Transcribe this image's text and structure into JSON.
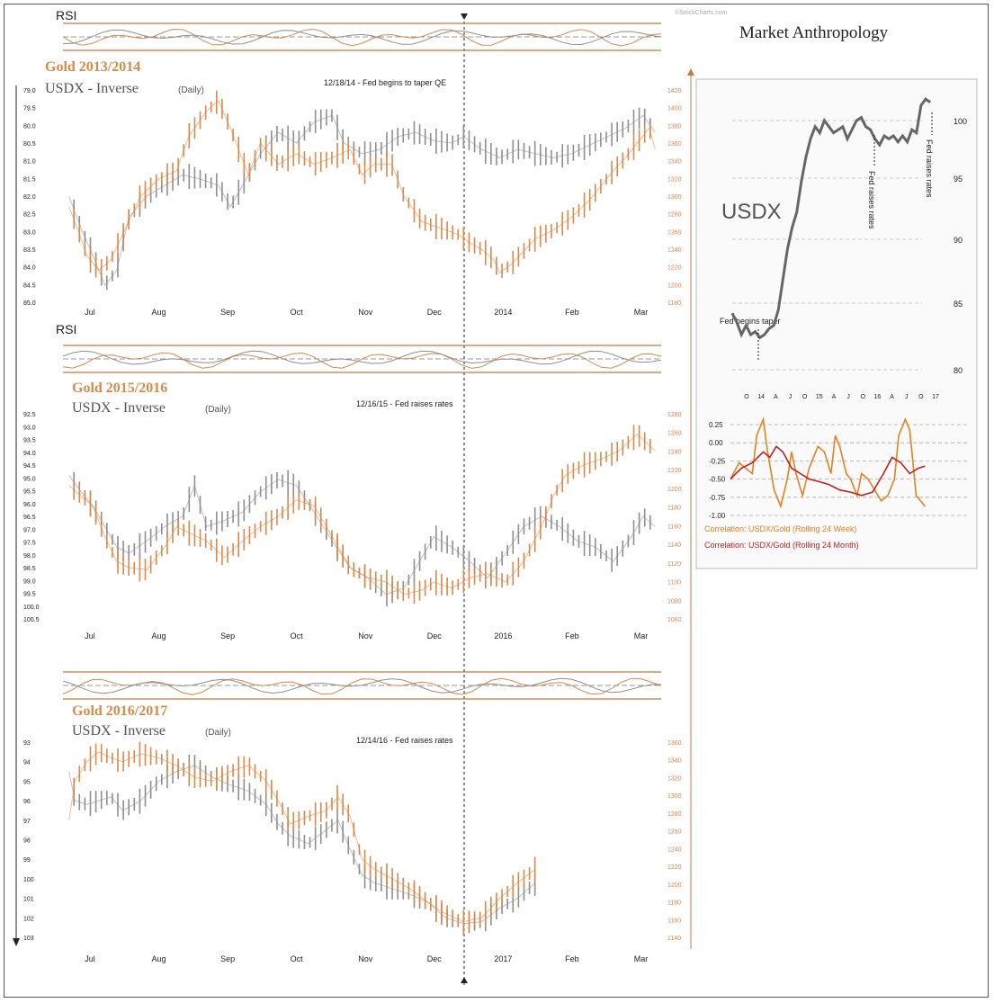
{
  "brand": {
    "name": "Market Anthropology",
    "watermark": "©StockCharts.com"
  },
  "colors": {
    "gold": "#d9894a",
    "usdx": "#8f8f8f",
    "frame": "#555555",
    "corr_week": "#e8801f",
    "corr_month": "#c2201e",
    "accent": "#c8783a"
  },
  "panels": [
    {
      "rsi_label": "RSI",
      "title_gold": "Gold 2013/2014",
      "title_usdx": "USDX - Inverse",
      "title_daily": "(Daily)",
      "annotation": "12/18/14 - Fed begins to taper QE",
      "months": [
        "Jul",
        "Aug",
        "Sep",
        "Oct",
        "Nov",
        "Dec",
        "2014",
        "Feb",
        "Mar"
      ],
      "usdx_ticks": [
        "79.0",
        "79.5",
        "80.0",
        "80.5",
        "81.0",
        "81.5",
        "82.0",
        "82.5",
        "83.0",
        "83.5",
        "84.0",
        "84.5",
        "85.0"
      ],
      "gold_ticks": [
        "1420",
        "1400",
        "1380",
        "1360",
        "1340",
        "1320",
        "1300",
        "1280",
        "1260",
        "1240",
        "1220",
        "1200",
        "1180"
      ],
      "gold_path": [
        [
          0.01,
          0.55
        ],
        [
          0.02,
          0.62
        ],
        [
          0.04,
          0.78
        ],
        [
          0.06,
          0.85
        ],
        [
          0.08,
          0.8
        ],
        [
          0.1,
          0.68
        ],
        [
          0.13,
          0.5
        ],
        [
          0.16,
          0.42
        ],
        [
          0.19,
          0.38
        ],
        [
          0.21,
          0.22
        ],
        [
          0.24,
          0.1
        ],
        [
          0.26,
          0.05
        ],
        [
          0.28,
          0.18
        ],
        [
          0.31,
          0.4
        ],
        [
          0.33,
          0.25
        ],
        [
          0.36,
          0.35
        ],
        [
          0.39,
          0.3
        ],
        [
          0.42,
          0.35
        ],
        [
          0.45,
          0.32
        ],
        [
          0.48,
          0.28
        ],
        [
          0.5,
          0.4
        ],
        [
          0.52,
          0.35
        ],
        [
          0.55,
          0.35
        ],
        [
          0.57,
          0.5
        ],
        [
          0.6,
          0.62
        ],
        [
          0.63,
          0.65
        ],
        [
          0.66,
          0.68
        ],
        [
          0.68,
          0.72
        ],
        [
          0.7,
          0.75
        ],
        [
          0.72,
          0.8
        ],
        [
          0.73,
          0.86
        ],
        [
          0.75,
          0.82
        ],
        [
          0.77,
          0.76
        ],
        [
          0.79,
          0.7
        ],
        [
          0.82,
          0.66
        ],
        [
          0.85,
          0.6
        ],
        [
          0.88,
          0.52
        ],
        [
          0.9,
          0.45
        ],
        [
          0.92,
          0.38
        ],
        [
          0.94,
          0.32
        ],
        [
          0.96,
          0.25
        ],
        [
          0.98,
          0.18
        ],
        [
          0.99,
          0.28
        ]
      ],
      "usdx_path": [
        [
          0.01,
          0.5
        ],
        [
          0.03,
          0.65
        ],
        [
          0.05,
          0.78
        ],
        [
          0.07,
          0.92
        ],
        [
          0.09,
          0.85
        ],
        [
          0.11,
          0.6
        ],
        [
          0.14,
          0.5
        ],
        [
          0.17,
          0.45
        ],
        [
          0.2,
          0.4
        ],
        [
          0.23,
          0.42
        ],
        [
          0.26,
          0.45
        ],
        [
          0.28,
          0.55
        ],
        [
          0.3,
          0.45
        ],
        [
          0.33,
          0.3
        ],
        [
          0.36,
          0.2
        ],
        [
          0.39,
          0.25
        ],
        [
          0.42,
          0.15
        ],
        [
          0.45,
          0.12
        ],
        [
          0.47,
          0.25
        ],
        [
          0.5,
          0.3
        ],
        [
          0.53,
          0.28
        ],
        [
          0.56,
          0.22
        ],
        [
          0.59,
          0.2
        ],
        [
          0.62,
          0.24
        ],
        [
          0.65,
          0.25
        ],
        [
          0.67,
          0.22
        ],
        [
          0.7,
          0.28
        ],
        [
          0.73,
          0.32
        ],
        [
          0.76,
          0.28
        ],
        [
          0.79,
          0.3
        ],
        [
          0.82,
          0.32
        ],
        [
          0.85,
          0.3
        ],
        [
          0.88,
          0.26
        ],
        [
          0.91,
          0.22
        ],
        [
          0.94,
          0.18
        ],
        [
          0.97,
          0.12
        ],
        [
          0.99,
          0.2
        ]
      ]
    },
    {
      "rsi_label": "RSI",
      "title_gold": "Gold 2015/2016",
      "title_usdx": "USDX - Inverse",
      "title_daily": "(Daily)",
      "annotation": "12/16/15 - Fed raises rates",
      "months": [
        "Jul",
        "Aug",
        "Sep",
        "Oct",
        "Nov",
        "Dec",
        "2016",
        "Feb",
        "Mar"
      ],
      "usdx_ticks": [
        "92.5",
        "93.0",
        "93.5",
        "94.0",
        "94.5",
        "95.0",
        "95.5",
        "96.0",
        "96.5",
        "97.0",
        "97.5",
        "98.0",
        "98.5",
        "99.0",
        "99.5",
        "100.0",
        "100.5"
      ],
      "gold_ticks": [
        "1280",
        "1260",
        "1240",
        "1220",
        "1200",
        "1180",
        "1160",
        "1140",
        "1120",
        "1100",
        "1080",
        "1060"
      ],
      "gold_path": [
        [
          0.01,
          0.35
        ],
        [
          0.03,
          0.4
        ],
        [
          0.05,
          0.45
        ],
        [
          0.07,
          0.6
        ],
        [
          0.09,
          0.72
        ],
        [
          0.11,
          0.75
        ],
        [
          0.14,
          0.76
        ],
        [
          0.17,
          0.65
        ],
        [
          0.19,
          0.55
        ],
        [
          0.21,
          0.58
        ],
        [
          0.24,
          0.62
        ],
        [
          0.27,
          0.7
        ],
        [
          0.3,
          0.62
        ],
        [
          0.33,
          0.55
        ],
        [
          0.36,
          0.5
        ],
        [
          0.39,
          0.42
        ],
        [
          0.42,
          0.45
        ],
        [
          0.45,
          0.6
        ],
        [
          0.48,
          0.75
        ],
        [
          0.51,
          0.8
        ],
        [
          0.54,
          0.82
        ],
        [
          0.57,
          0.88
        ],
        [
          0.6,
          0.86
        ],
        [
          0.62,
          0.82
        ],
        [
          0.65,
          0.85
        ],
        [
          0.68,
          0.8
        ],
        [
          0.71,
          0.78
        ],
        [
          0.74,
          0.82
        ],
        [
          0.77,
          0.72
        ],
        [
          0.8,
          0.55
        ],
        [
          0.82,
          0.4
        ],
        [
          0.84,
          0.3
        ],
        [
          0.87,
          0.25
        ],
        [
          0.9,
          0.22
        ],
        [
          0.93,
          0.18
        ],
        [
          0.96,
          0.1
        ],
        [
          0.99,
          0.18
        ]
      ],
      "usdx_path": [
        [
          0.01,
          0.3
        ],
        [
          0.03,
          0.38
        ],
        [
          0.05,
          0.45
        ],
        [
          0.07,
          0.55
        ],
        [
          0.09,
          0.65
        ],
        [
          0.11,
          0.68
        ],
        [
          0.14,
          0.62
        ],
        [
          0.17,
          0.55
        ],
        [
          0.2,
          0.5
        ],
        [
          0.22,
          0.35
        ],
        [
          0.24,
          0.55
        ],
        [
          0.27,
          0.52
        ],
        [
          0.3,
          0.48
        ],
        [
          0.33,
          0.38
        ],
        [
          0.36,
          0.32
        ],
        [
          0.39,
          0.35
        ],
        [
          0.42,
          0.48
        ],
        [
          0.45,
          0.62
        ],
        [
          0.48,
          0.75
        ],
        [
          0.51,
          0.8
        ],
        [
          0.54,
          0.88
        ],
        [
          0.57,
          0.85
        ],
        [
          0.6,
          0.7
        ],
        [
          0.62,
          0.6
        ],
        [
          0.65,
          0.65
        ],
        [
          0.68,
          0.72
        ],
        [
          0.71,
          0.8
        ],
        [
          0.74,
          0.68
        ],
        [
          0.77,
          0.55
        ],
        [
          0.8,
          0.5
        ],
        [
          0.83,
          0.55
        ],
        [
          0.86,
          0.62
        ],
        [
          0.89,
          0.65
        ],
        [
          0.92,
          0.72
        ],
        [
          0.95,
          0.6
        ],
        [
          0.97,
          0.5
        ],
        [
          0.99,
          0.55
        ]
      ]
    },
    {
      "rsi_label": "",
      "title_gold": "Gold 2016/2017",
      "title_usdx": "USDX - Inverse",
      "title_daily": "(Daily)",
      "annotation": "12/14/16 - Fed raises rates",
      "months": [
        "Jul",
        "Aug",
        "Sep",
        "Oct",
        "Nov",
        "Dec",
        "2017",
        "Feb",
        "Mar"
      ],
      "usdx_ticks": [
        "93",
        "94",
        "95",
        "96",
        "97",
        "98",
        "99",
        "100",
        "101",
        "102",
        "103"
      ],
      "gold_ticks": [
        "1360",
        "1340",
        "1320",
        "1300",
        "1280",
        "1260",
        "1240",
        "1220",
        "1200",
        "1180",
        "1160",
        "1140"
      ],
      "gold_path": [
        [
          0.01,
          0.4
        ],
        [
          0.02,
          0.2
        ],
        [
          0.04,
          0.1
        ],
        [
          0.06,
          0.05
        ],
        [
          0.08,
          0.08
        ],
        [
          0.1,
          0.1
        ],
        [
          0.13,
          0.06
        ],
        [
          0.16,
          0.08
        ],
        [
          0.19,
          0.12
        ],
        [
          0.22,
          0.18
        ],
        [
          0.25,
          0.2
        ],
        [
          0.28,
          0.15
        ],
        [
          0.31,
          0.12
        ],
        [
          0.34,
          0.2
        ],
        [
          0.36,
          0.3
        ],
        [
          0.38,
          0.42
        ],
        [
          0.41,
          0.38
        ],
        [
          0.44,
          0.35
        ],
        [
          0.46,
          0.28
        ],
        [
          0.48,
          0.38
        ],
        [
          0.5,
          0.6
        ],
        [
          0.52,
          0.65
        ],
        [
          0.55,
          0.7
        ],
        [
          0.58,
          0.75
        ],
        [
          0.61,
          0.82
        ],
        [
          0.64,
          0.88
        ],
        [
          0.67,
          0.92
        ],
        [
          0.7,
          0.9
        ],
        [
          0.73,
          0.8
        ],
        [
          0.76,
          0.72
        ],
        [
          0.79,
          0.65
        ]
      ],
      "usdx_path": [
        [
          0.01,
          0.15
        ],
        [
          0.02,
          0.3
        ],
        [
          0.04,
          0.32
        ],
        [
          0.06,
          0.3
        ],
        [
          0.08,
          0.28
        ],
        [
          0.1,
          0.35
        ],
        [
          0.13,
          0.3
        ],
        [
          0.16,
          0.2
        ],
        [
          0.19,
          0.15
        ],
        [
          0.22,
          0.12
        ],
        [
          0.25,
          0.18
        ],
        [
          0.28,
          0.22
        ],
        [
          0.31,
          0.25
        ],
        [
          0.34,
          0.32
        ],
        [
          0.36,
          0.42
        ],
        [
          0.38,
          0.48
        ],
        [
          0.41,
          0.52
        ],
        [
          0.44,
          0.45
        ],
        [
          0.46,
          0.4
        ],
        [
          0.48,
          0.55
        ],
        [
          0.5,
          0.68
        ],
        [
          0.52,
          0.72
        ],
        [
          0.55,
          0.75
        ],
        [
          0.58,
          0.78
        ],
        [
          0.61,
          0.82
        ],
        [
          0.64,
          0.9
        ],
        [
          0.67,
          0.93
        ],
        [
          0.7,
          0.92
        ],
        [
          0.73,
          0.85
        ],
        [
          0.76,
          0.8
        ],
        [
          0.79,
          0.72
        ]
      ]
    }
  ],
  "usdx_chart": {
    "label": "USDX",
    "y_ticks": [
      "100",
      "95",
      "90",
      "85",
      "80"
    ],
    "x_ticks": [
      "O",
      "14",
      "A",
      "J",
      "O",
      "15",
      "A",
      "J",
      "O",
      "16",
      "A",
      "J",
      "O",
      "17"
    ],
    "ann_taper": "Fed begins taper",
    "ann_raise": "Fed raises rates",
    "series": [
      [
        0.0,
        0.73
      ],
      [
        0.02,
        0.76
      ],
      [
        0.04,
        0.8
      ],
      [
        0.06,
        0.77
      ],
      [
        0.08,
        0.8
      ],
      [
        0.1,
        0.79
      ],
      [
        0.12,
        0.81
      ],
      [
        0.14,
        0.8
      ],
      [
        0.16,
        0.78
      ],
      [
        0.18,
        0.77
      ],
      [
        0.2,
        0.72
      ],
      [
        0.22,
        0.62
      ],
      [
        0.24,
        0.52
      ],
      [
        0.26,
        0.45
      ],
      [
        0.28,
        0.4
      ],
      [
        0.3,
        0.3
      ],
      [
        0.32,
        0.22
      ],
      [
        0.34,
        0.16
      ],
      [
        0.36,
        0.12
      ],
      [
        0.38,
        0.14
      ],
      [
        0.4,
        0.1
      ],
      [
        0.42,
        0.12
      ],
      [
        0.44,
        0.14
      ],
      [
        0.46,
        0.13
      ],
      [
        0.48,
        0.12
      ],
      [
        0.5,
        0.16
      ],
      [
        0.52,
        0.13
      ],
      [
        0.54,
        0.1
      ],
      [
        0.56,
        0.09
      ],
      [
        0.58,
        0.12
      ],
      [
        0.6,
        0.13
      ],
      [
        0.62,
        0.16
      ],
      [
        0.64,
        0.18
      ],
      [
        0.66,
        0.15
      ],
      [
        0.68,
        0.16
      ],
      [
        0.7,
        0.15
      ],
      [
        0.72,
        0.17
      ],
      [
        0.74,
        0.15
      ],
      [
        0.76,
        0.17
      ],
      [
        0.78,
        0.13
      ],
      [
        0.8,
        0.14
      ],
      [
        0.82,
        0.05
      ],
      [
        0.84,
        0.03
      ],
      [
        0.86,
        0.04
      ]
    ]
  },
  "corr_chart": {
    "y_ticks": [
      "0.25",
      "0.00",
      "-0.25",
      "-0.50",
      "-0.75",
      "-1.00"
    ],
    "legend_week": "Correlation: USDX/Gold (Rolling 24 Week)",
    "legend_month": "Correlation: USDX/Gold (Rolling 24 Month)",
    "week_series": [
      [
        0.0,
        0.6
      ],
      [
        0.04,
        0.45
      ],
      [
        0.07,
        0.5
      ],
      [
        0.1,
        0.55
      ],
      [
        0.12,
        0.2
      ],
      [
        0.15,
        0.05
      ],
      [
        0.17,
        0.35
      ],
      [
        0.2,
        0.7
      ],
      [
        0.23,
        0.85
      ],
      [
        0.26,
        0.6
      ],
      [
        0.28,
        0.35
      ],
      [
        0.3,
        0.55
      ],
      [
        0.33,
        0.75
      ],
      [
        0.36,
        0.5
      ],
      [
        0.4,
        0.3
      ],
      [
        0.43,
        0.35
      ],
      [
        0.46,
        0.55
      ],
      [
        0.48,
        0.2
      ],
      [
        0.5,
        0.3
      ],
      [
        0.53,
        0.55
      ],
      [
        0.55,
        0.6
      ],
      [
        0.58,
        0.75
      ],
      [
        0.6,
        0.55
      ],
      [
        0.63,
        0.6
      ],
      [
        0.66,
        0.7
      ],
      [
        0.69,
        0.8
      ],
      [
        0.72,
        0.75
      ],
      [
        0.75,
        0.6
      ],
      [
        0.77,
        0.2
      ],
      [
        0.8,
        0.05
      ],
      [
        0.82,
        0.15
      ],
      [
        0.85,
        0.75
      ],
      [
        0.87,
        0.8
      ],
      [
        0.89,
        0.85
      ]
    ],
    "month_series": [
      [
        0.0,
        0.6
      ],
      [
        0.05,
        0.5
      ],
      [
        0.1,
        0.45
      ],
      [
        0.15,
        0.35
      ],
      [
        0.18,
        0.4
      ],
      [
        0.21,
        0.3
      ],
      [
        0.24,
        0.35
      ],
      [
        0.28,
        0.5
      ],
      [
        0.32,
        0.55
      ],
      [
        0.36,
        0.6
      ],
      [
        0.4,
        0.62
      ],
      [
        0.45,
        0.65
      ],
      [
        0.5,
        0.7
      ],
      [
        0.55,
        0.72
      ],
      [
        0.6,
        0.75
      ],
      [
        0.65,
        0.72
      ],
      [
        0.7,
        0.55
      ],
      [
        0.74,
        0.4
      ],
      [
        0.78,
        0.45
      ],
      [
        0.82,
        0.55
      ],
      [
        0.86,
        0.5
      ],
      [
        0.89,
        0.48
      ]
    ]
  }
}
